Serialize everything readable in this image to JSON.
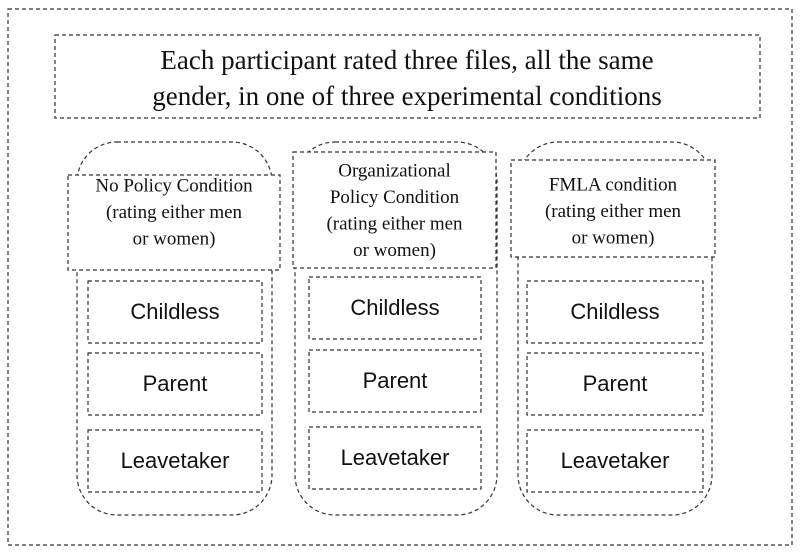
{
  "title": {
    "lines": [
      "Each participant rated three files, all the same",
      "gender, in one of three experimental conditions"
    ]
  },
  "conditions": [
    {
      "header": [
        "No Policy Condition",
        "(rating either men",
        "or women)"
      ],
      "files": [
        "Childless",
        "Parent",
        "Leavetaker"
      ]
    },
    {
      "header": [
        "Organizational",
        "Policy Condition",
        "(rating either men",
        "or women)"
      ],
      "files": [
        "Childless",
        "Parent",
        "Leavetaker"
      ]
    },
    {
      "header": [
        "FMLA condition",
        "(rating either men",
        "or women)"
      ],
      "files": [
        "Childless",
        "Parent",
        "Leavetaker"
      ]
    }
  ]
}
